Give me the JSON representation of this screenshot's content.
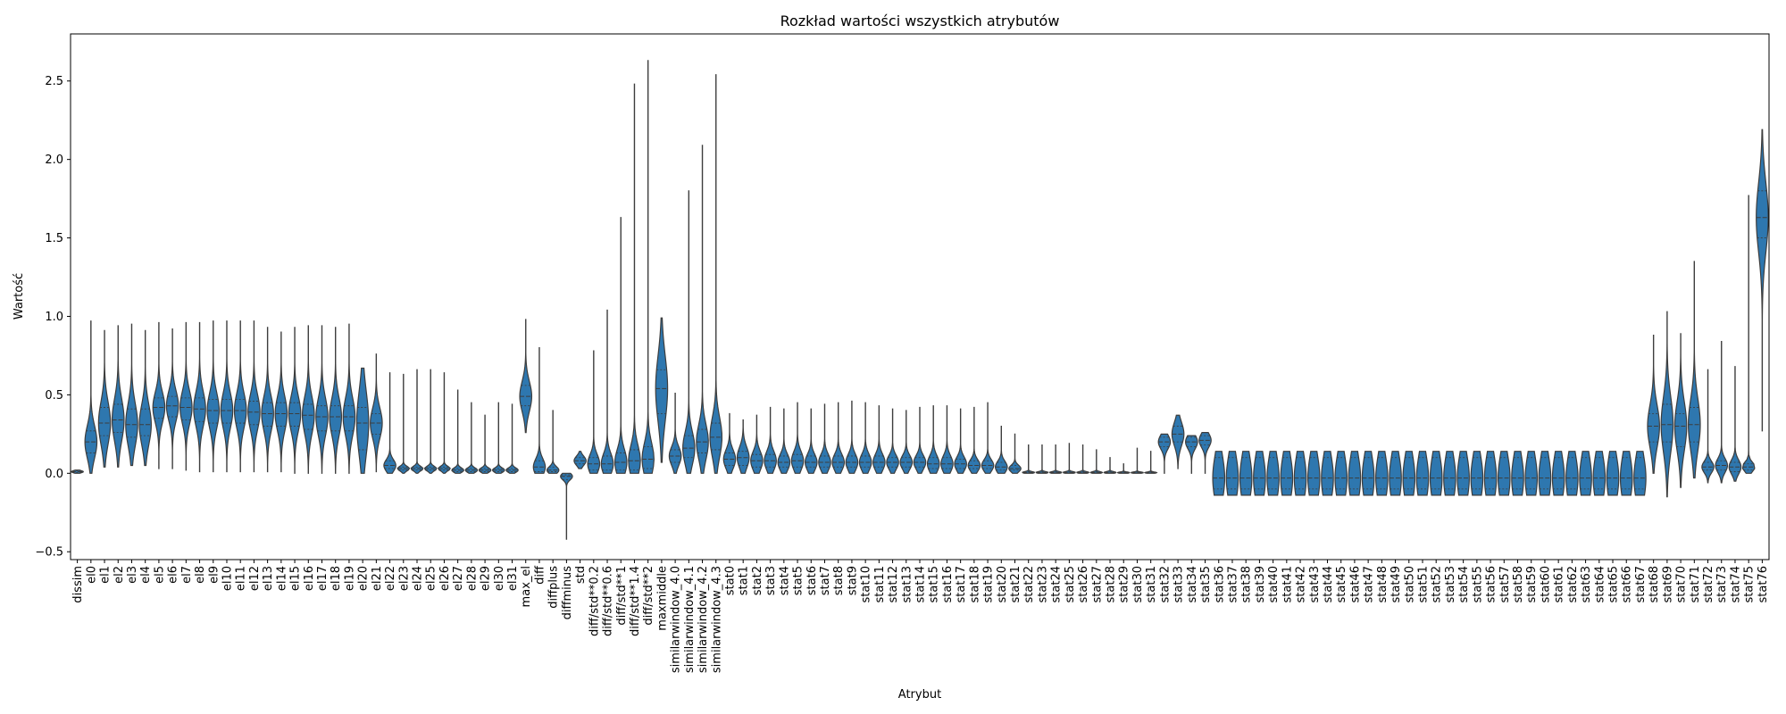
{
  "chart_data": {
    "type": "violin",
    "title": "Rozkład wartości wszystkich atrybutów",
    "xlabel": "Atrybut",
    "ylabel": "Wartość",
    "ylim": [
      -0.55,
      2.8
    ],
    "yticks": [
      -0.5,
      0.0,
      0.5,
      1.0,
      1.5,
      2.0,
      2.5
    ],
    "ytick_labels": [
      "−0.5",
      "0.0",
      "0.5",
      "1.0",
      "1.5",
      "2.0",
      "2.5"
    ],
    "grid": false,
    "color": "#2e77af",
    "edge_color": "#3d3d3d",
    "categories": [
      "dissim",
      "el0",
      "el1",
      "el2",
      "el3",
      "el4",
      "el5",
      "el6",
      "el7",
      "el8",
      "el9",
      "el10",
      "el11",
      "el12",
      "el13",
      "el14",
      "el15",
      "el16",
      "el17",
      "el18",
      "el19",
      "el20",
      "el21",
      "el22",
      "el23",
      "el24",
      "el25",
      "el26",
      "el27",
      "el28",
      "el29",
      "el30",
      "el31",
      "max_el",
      "diff",
      "diffplus",
      "diffminus",
      "std",
      "diff/std**0.2",
      "diff/std**0.6",
      "diff/std**1",
      "diff/std**1.4",
      "diff/std**2",
      "maxmiddle",
      "similarwindow_4.0",
      "similarwindow_4.1",
      "similarwindow_4.2",
      "similarwindow_4.3",
      "stat0",
      "stat1",
      "stat2",
      "stat3",
      "stat4",
      "stat5",
      "stat6",
      "stat7",
      "stat8",
      "stat9",
      "stat10",
      "stat11",
      "stat12",
      "stat13",
      "stat14",
      "stat15",
      "stat16",
      "stat17",
      "stat18",
      "stat19",
      "stat20",
      "stat21",
      "stat22",
      "stat23",
      "stat24",
      "stat25",
      "stat26",
      "stat27",
      "stat28",
      "stat29",
      "stat30",
      "stat31",
      "stat32",
      "stat33",
      "stat34",
      "stat35",
      "stat36",
      "stat37",
      "stat38",
      "stat39",
      "stat40",
      "stat41",
      "stat42",
      "stat43",
      "stat44",
      "stat45",
      "stat46",
      "stat47",
      "stat48",
      "stat49",
      "stat50",
      "stat51",
      "stat52",
      "stat53",
      "stat54",
      "stat55",
      "stat56",
      "stat57",
      "stat58",
      "stat59",
      "stat60",
      "stat61",
      "stat62",
      "stat63",
      "stat64",
      "stat65",
      "stat66",
      "stat67",
      "stat68",
      "stat69",
      "stat70",
      "stat71",
      "stat72",
      "stat73",
      "stat74",
      "stat75",
      "stat76"
    ],
    "ranges": [
      [
        0.0,
        0.02
      ],
      [
        0.0,
        0.97
      ],
      [
        0.04,
        0.91
      ],
      [
        0.04,
        0.94
      ],
      [
        0.05,
        0.95
      ],
      [
        0.05,
        0.91
      ],
      [
        0.03,
        0.96
      ],
      [
        0.03,
        0.92
      ],
      [
        0.02,
        0.96
      ],
      [
        0.01,
        0.96
      ],
      [
        0.01,
        0.97
      ],
      [
        0.01,
        0.97
      ],
      [
        0.01,
        0.97
      ],
      [
        0.01,
        0.97
      ],
      [
        0.01,
        0.93
      ],
      [
        0.01,
        0.9
      ],
      [
        0.0,
        0.93
      ],
      [
        0.0,
        0.94
      ],
      [
        0.0,
        0.94
      ],
      [
        0.0,
        0.93
      ],
      [
        0.0,
        0.95
      ],
      [
        0.0,
        0.67
      ],
      [
        0.01,
        0.76
      ],
      [
        0.0,
        0.64
      ],
      [
        0.0,
        0.63
      ],
      [
        0.0,
        0.66
      ],
      [
        0.0,
        0.66
      ],
      [
        0.0,
        0.64
      ],
      [
        0.0,
        0.53
      ],
      [
        0.0,
        0.45
      ],
      [
        0.0,
        0.37
      ],
      [
        0.0,
        0.45
      ],
      [
        0.0,
        0.44
      ],
      [
        0.26,
        0.98
      ],
      [
        0.0,
        0.8
      ],
      [
        0.0,
        0.4
      ],
      [
        -0.42,
        0.0
      ],
      [
        0.03,
        0.14
      ],
      [
        0.0,
        0.78
      ],
      [
        0.0,
        1.04
      ],
      [
        0.0,
        1.63
      ],
      [
        0.0,
        2.48
      ],
      [
        0.0,
        2.63
      ],
      [
        0.07,
        0.99
      ],
      [
        0.0,
        0.51
      ],
      [
        0.0,
        1.8
      ],
      [
        0.0,
        2.09
      ],
      [
        0.0,
        2.54
      ],
      [
        0.0,
        0.38
      ],
      [
        0.0,
        0.34
      ],
      [
        0.0,
        0.37
      ],
      [
        0.0,
        0.42
      ],
      [
        0.0,
        0.41
      ],
      [
        0.0,
        0.45
      ],
      [
        0.0,
        0.41
      ],
      [
        0.0,
        0.44
      ],
      [
        0.0,
        0.45
      ],
      [
        0.0,
        0.46
      ],
      [
        0.0,
        0.45
      ],
      [
        0.0,
        0.43
      ],
      [
        0.0,
        0.41
      ],
      [
        0.0,
        0.4
      ],
      [
        0.0,
        0.42
      ],
      [
        0.0,
        0.43
      ],
      [
        0.0,
        0.43
      ],
      [
        0.0,
        0.41
      ],
      [
        0.0,
        0.42
      ],
      [
        0.0,
        0.45
      ],
      [
        0.0,
        0.3
      ],
      [
        0.0,
        0.25
      ],
      [
        0.0,
        0.18
      ],
      [
        0.0,
        0.18
      ],
      [
        0.0,
        0.18
      ],
      [
        0.0,
        0.19
      ],
      [
        0.0,
        0.18
      ],
      [
        0.0,
        0.15
      ],
      [
        0.0,
        0.1
      ],
      [
        0.0,
        0.06
      ],
      [
        0.0,
        0.16
      ],
      [
        0.0,
        0.14
      ],
      [
        0.0,
        0.25
      ],
      [
        0.03,
        0.37
      ],
      [
        0.0,
        0.24
      ],
      [
        0.0,
        0.26
      ],
      [
        -0.14,
        0.14
      ],
      [
        -0.14,
        0.14
      ],
      [
        -0.14,
        0.14
      ],
      [
        -0.14,
        0.14
      ],
      [
        -0.14,
        0.14
      ],
      [
        -0.14,
        0.14
      ],
      [
        -0.14,
        0.14
      ],
      [
        -0.14,
        0.14
      ],
      [
        -0.14,
        0.14
      ],
      [
        -0.14,
        0.14
      ],
      [
        -0.14,
        0.14
      ],
      [
        -0.14,
        0.14
      ],
      [
        -0.14,
        0.14
      ],
      [
        -0.14,
        0.14
      ],
      [
        -0.14,
        0.14
      ],
      [
        -0.14,
        0.14
      ],
      [
        -0.14,
        0.14
      ],
      [
        -0.14,
        0.14
      ],
      [
        -0.14,
        0.14
      ],
      [
        -0.14,
        0.14
      ],
      [
        -0.14,
        0.14
      ],
      [
        -0.14,
        0.14
      ],
      [
        -0.14,
        0.14
      ],
      [
        -0.14,
        0.14
      ],
      [
        -0.14,
        0.14
      ],
      [
        -0.14,
        0.14
      ],
      [
        -0.14,
        0.14
      ],
      [
        -0.14,
        0.14
      ],
      [
        -0.14,
        0.14
      ],
      [
        -0.14,
        0.14
      ],
      [
        -0.14,
        0.14
      ],
      [
        -0.14,
        0.14
      ],
      [
        0.0,
        0.88
      ],
      [
        -0.15,
        1.03
      ],
      [
        -0.09,
        0.89
      ],
      [
        -0.03,
        1.35
      ],
      [
        -0.06,
        0.66
      ],
      [
        -0.06,
        0.84
      ],
      [
        -0.05,
        0.68
      ],
      [
        0.0,
        1.77
      ],
      [
        0.27,
        2.19
      ]
    ],
    "quartiles": [
      [
        0.005,
        0.01,
        0.015
      ],
      [
        0.13,
        0.2,
        0.27
      ],
      [
        0.24,
        0.32,
        0.42
      ],
      [
        0.26,
        0.34,
        0.44
      ],
      [
        0.23,
        0.31,
        0.41
      ],
      [
        0.24,
        0.31,
        0.41
      ],
      [
        0.35,
        0.42,
        0.48
      ],
      [
        0.36,
        0.43,
        0.49
      ],
      [
        0.34,
        0.42,
        0.48
      ],
      [
        0.33,
        0.41,
        0.48
      ],
      [
        0.32,
        0.4,
        0.47
      ],
      [
        0.32,
        0.4,
        0.47
      ],
      [
        0.32,
        0.4,
        0.47
      ],
      [
        0.31,
        0.39,
        0.46
      ],
      [
        0.3,
        0.38,
        0.45
      ],
      [
        0.3,
        0.38,
        0.45
      ],
      [
        0.3,
        0.38,
        0.45
      ],
      [
        0.28,
        0.37,
        0.44
      ],
      [
        0.27,
        0.36,
        0.43
      ],
      [
        0.27,
        0.36,
        0.43
      ],
      [
        0.27,
        0.36,
        0.43
      ],
      [
        0.15,
        0.32,
        0.42
      ],
      [
        0.25,
        0.32,
        0.38
      ],
      [
        0.03,
        0.05,
        0.08
      ],
      [
        0.02,
        0.03,
        0.04
      ],
      [
        0.02,
        0.03,
        0.04
      ],
      [
        0.02,
        0.03,
        0.04
      ],
      [
        0.02,
        0.03,
        0.04
      ],
      [
        0.01,
        0.02,
        0.03
      ],
      [
        0.01,
        0.02,
        0.03
      ],
      [
        0.01,
        0.02,
        0.03
      ],
      [
        0.01,
        0.02,
        0.03
      ],
      [
        0.01,
        0.02,
        0.03
      ],
      [
        0.43,
        0.49,
        0.56
      ],
      [
        0.01,
        0.04,
        0.08
      ],
      [
        0.01,
        0.02,
        0.04
      ],
      [
        -0.04,
        -0.02,
        -0.01
      ],
      [
        0.06,
        0.08,
        0.1
      ],
      [
        0.02,
        0.06,
        0.1
      ],
      [
        0.02,
        0.06,
        0.11
      ],
      [
        0.02,
        0.07,
        0.13
      ],
      [
        0.02,
        0.08,
        0.15
      ],
      [
        0.03,
        0.09,
        0.17
      ],
      [
        0.38,
        0.54,
        0.66
      ],
      [
        0.07,
        0.11,
        0.15
      ],
      [
        0.1,
        0.16,
        0.24
      ],
      [
        0.13,
        0.2,
        0.28
      ],
      [
        0.15,
        0.23,
        0.32
      ],
      [
        0.05,
        0.09,
        0.13
      ],
      [
        0.05,
        0.1,
        0.14
      ],
      [
        0.04,
        0.08,
        0.12
      ],
      [
        0.04,
        0.08,
        0.12
      ],
      [
        0.04,
        0.07,
        0.11
      ],
      [
        0.04,
        0.08,
        0.12
      ],
      [
        0.04,
        0.07,
        0.11
      ],
      [
        0.04,
        0.07,
        0.11
      ],
      [
        0.04,
        0.07,
        0.11
      ],
      [
        0.04,
        0.07,
        0.11
      ],
      [
        0.04,
        0.07,
        0.11
      ],
      [
        0.04,
        0.07,
        0.11
      ],
      [
        0.04,
        0.07,
        0.1
      ],
      [
        0.04,
        0.07,
        0.1
      ],
      [
        0.04,
        0.07,
        0.1
      ],
      [
        0.03,
        0.06,
        0.1
      ],
      [
        0.03,
        0.06,
        0.1
      ],
      [
        0.03,
        0.06,
        0.09
      ],
      [
        0.03,
        0.05,
        0.08
      ],
      [
        0.03,
        0.05,
        0.08
      ],
      [
        0.02,
        0.04,
        0.07
      ],
      [
        0.02,
        0.03,
        0.05
      ],
      [
        0.002,
        0.005,
        0.01
      ],
      [
        0.002,
        0.005,
        0.01
      ],
      [
        0.002,
        0.005,
        0.01
      ],
      [
        0.002,
        0.005,
        0.01
      ],
      [
        0.002,
        0.005,
        0.01
      ],
      [
        0.002,
        0.005,
        0.01
      ],
      [
        0.002,
        0.005,
        0.01
      ],
      [
        0.002,
        0.004,
        0.008
      ],
      [
        0.002,
        0.004,
        0.008
      ],
      [
        0.002,
        0.004,
        0.008
      ],
      [
        0.17,
        0.2,
        0.23
      ],
      [
        0.2,
        0.25,
        0.3
      ],
      [
        0.17,
        0.2,
        0.23
      ],
      [
        0.18,
        0.21,
        0.24
      ],
      [
        -0.1,
        -0.03,
        0.1
      ],
      [
        -0.1,
        -0.03,
        0.1
      ],
      [
        -0.1,
        -0.03,
        0.1
      ],
      [
        -0.1,
        -0.03,
        0.1
      ],
      [
        -0.1,
        -0.03,
        0.1
      ],
      [
        -0.1,
        -0.03,
        0.1
      ],
      [
        -0.1,
        -0.03,
        0.1
      ],
      [
        -0.1,
        -0.03,
        0.1
      ],
      [
        -0.1,
        -0.03,
        0.1
      ],
      [
        -0.1,
        -0.03,
        0.1
      ],
      [
        -0.1,
        -0.03,
        0.1
      ],
      [
        -0.1,
        -0.03,
        0.1
      ],
      [
        -0.1,
        -0.03,
        0.1
      ],
      [
        -0.1,
        -0.03,
        0.1
      ],
      [
        -0.1,
        -0.03,
        0.1
      ],
      [
        -0.1,
        -0.03,
        0.1
      ],
      [
        -0.1,
        -0.03,
        0.1
      ],
      [
        -0.1,
        -0.03,
        0.1
      ],
      [
        -0.1,
        -0.03,
        0.1
      ],
      [
        -0.1,
        -0.03,
        0.1
      ],
      [
        -0.1,
        -0.03,
        0.1
      ],
      [
        -0.1,
        -0.03,
        0.1
      ],
      [
        -0.1,
        -0.03,
        0.1
      ],
      [
        -0.1,
        -0.03,
        0.1
      ],
      [
        -0.1,
        -0.03,
        0.1
      ],
      [
        -0.1,
        -0.03,
        0.1
      ],
      [
        -0.1,
        -0.03,
        0.1
      ],
      [
        -0.1,
        -0.03,
        0.1
      ],
      [
        -0.1,
        -0.03,
        0.1
      ],
      [
        -0.1,
        -0.03,
        0.1
      ],
      [
        -0.1,
        -0.03,
        0.1
      ],
      [
        -0.1,
        -0.03,
        0.1
      ],
      [
        0.2,
        0.3,
        0.38
      ],
      [
        0.2,
        0.31,
        0.44
      ],
      [
        0.17,
        0.3,
        0.38
      ],
      [
        0.2,
        0.31,
        0.42
      ],
      [
        0.02,
        0.04,
        0.07
      ],
      [
        0.02,
        0.05,
        0.08
      ],
      [
        0.01,
        0.04,
        0.07
      ],
      [
        0.02,
        0.04,
        0.06
      ],
      [
        1.5,
        1.63,
        1.8
      ]
    ]
  }
}
